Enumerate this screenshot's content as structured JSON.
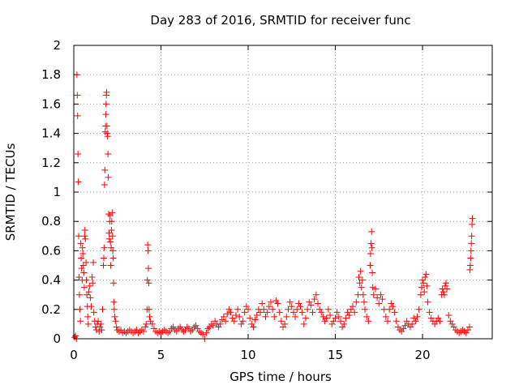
{
  "chart_data": {
    "type": "scatter",
    "title": "Day 283 of 2016, SRMTID for receiver func",
    "xlabel": "GPS time / hours",
    "ylabel": "SRMTID / TECUs",
    "xlim": [
      0,
      24
    ],
    "ylim": [
      0,
      2
    ],
    "xticks": [
      0,
      5,
      10,
      15,
      20
    ],
    "xtick_labels": [
      "0",
      "5",
      "10",
      "15",
      "20"
    ],
    "yticks": [
      0,
      0.2,
      0.4,
      0.6,
      0.8,
      1,
      1.2,
      1.4,
      1.6,
      1.8,
      2
    ],
    "ytick_labels": [
      "0",
      "0.2",
      "0.4",
      "0.6",
      "0.8",
      "1",
      "1.2",
      "1.4",
      "1.6",
      "1.8",
      "2"
    ],
    "grid": true,
    "marker": "+",
    "color": "#ff0000",
    "series": [
      {
        "name": "SRMTID",
        "points": [
          [
            0.05,
            0.01
          ],
          [
            0.1,
            0.02
          ],
          [
            0.15,
            0.0
          ],
          [
            0.18,
            1.8
          ],
          [
            0.2,
            1.66
          ],
          [
            0.22,
            1.52
          ],
          [
            0.24,
            1.26
          ],
          [
            0.26,
            1.07
          ],
          [
            0.28,
            0.7
          ],
          [
            0.3,
            0.42
          ],
          [
            0.32,
            0.3
          ],
          [
            0.35,
            0.2
          ],
          [
            0.38,
            0.12
          ],
          [
            0.4,
            0.65
          ],
          [
            0.42,
            0.55
          ],
          [
            0.45,
            0.48
          ],
          [
            0.48,
            0.4
          ],
          [
            0.5,
            0.62
          ],
          [
            0.52,
            0.58
          ],
          [
            0.55,
            0.5
          ],
          [
            0.58,
            0.45
          ],
          [
            0.6,
            0.35
          ],
          [
            0.62,
            0.7
          ],
          [
            0.64,
            0.74
          ],
          [
            0.66,
            0.68
          ],
          [
            0.7,
            0.52
          ],
          [
            0.72,
            0.4
          ],
          [
            0.75,
            0.3
          ],
          [
            0.78,
            0.22
          ],
          [
            0.8,
            0.15
          ],
          [
            0.83,
            0.1
          ],
          [
            0.86,
            0.32
          ],
          [
            0.9,
            0.36
          ],
          [
            0.95,
            0.28
          ],
          [
            1.0,
            0.22
          ],
          [
            1.05,
            0.42
          ],
          [
            1.08,
            0.38
          ],
          [
            1.12,
            0.52
          ],
          [
            1.15,
            0.18
          ],
          [
            1.2,
            0.12
          ],
          [
            1.25,
            0.08
          ],
          [
            1.3,
            0.06
          ],
          [
            1.35,
            0.1
          ],
          [
            1.4,
            0.12
          ],
          [
            1.45,
            0.05
          ],
          [
            1.5,
            0.08
          ],
          [
            1.55,
            0.1
          ],
          [
            1.6,
            0.06
          ],
          [
            1.65,
            0.2
          ],
          [
            1.7,
            0.5
          ],
          [
            1.72,
            0.55
          ],
          [
            1.74,
            0.62
          ],
          [
            1.76,
            1.05
          ],
          [
            1.78,
            1.15
          ],
          [
            1.8,
            1.41
          ],
          [
            1.82,
            1.45
          ],
          [
            1.84,
            1.53
          ],
          [
            1.85,
            1.6
          ],
          [
            1.87,
            1.66
          ],
          [
            1.88,
            1.68
          ],
          [
            1.9,
            1.45
          ],
          [
            1.92,
            1.4
          ],
          [
            1.94,
            1.38
          ],
          [
            1.96,
            1.26
          ],
          [
            1.98,
            1.1
          ],
          [
            2.0,
            0.85
          ],
          [
            2.02,
            0.72
          ],
          [
            2.04,
            0.68
          ],
          [
            2.06,
            0.8
          ],
          [
            2.08,
            0.84
          ],
          [
            2.1,
            0.66
          ],
          [
            2.12,
            0.5
          ],
          [
            2.14,
            0.62
          ],
          [
            2.16,
            0.74
          ],
          [
            2.18,
            0.8
          ],
          [
            2.2,
            0.86
          ],
          [
            2.22,
            0.7
          ],
          [
            2.24,
            0.6
          ],
          [
            2.26,
            0.55
          ],
          [
            2.28,
            0.38
          ],
          [
            2.3,
            0.25
          ],
          [
            2.32,
            0.2
          ],
          [
            2.35,
            0.15
          ],
          [
            2.4,
            0.12
          ],
          [
            2.45,
            0.08
          ],
          [
            2.5,
            0.06
          ],
          [
            2.6,
            0.05
          ],
          [
            2.7,
            0.06
          ],
          [
            2.8,
            0.04
          ],
          [
            2.9,
            0.05
          ],
          [
            3.0,
            0.04
          ],
          [
            3.1,
            0.05
          ],
          [
            3.2,
            0.06
          ],
          [
            3.3,
            0.05
          ],
          [
            3.4,
            0.04
          ],
          [
            3.5,
            0.05
          ],
          [
            3.6,
            0.06
          ],
          [
            3.7,
            0.04
          ],
          [
            3.8,
            0.05
          ],
          [
            3.9,
            0.06
          ],
          [
            4.0,
            0.05
          ],
          [
            4.1,
            0.08
          ],
          [
            4.15,
            0.1
          ],
          [
            4.2,
            0.2
          ],
          [
            4.22,
            0.4
          ],
          [
            4.24,
            0.64
          ],
          [
            4.26,
            0.6
          ],
          [
            4.28,
            0.48
          ],
          [
            4.3,
            0.38
          ],
          [
            4.32,
            0.2
          ],
          [
            4.35,
            0.15
          ],
          [
            4.4,
            0.12
          ],
          [
            4.5,
            0.1
          ],
          [
            4.6,
            0.07
          ],
          [
            4.7,
            0.05
          ],
          [
            4.8,
            0.04
          ],
          [
            4.9,
            0.05
          ],
          [
            5.0,
            0.04
          ],
          [
            5.1,
            0.05
          ],
          [
            5.2,
            0.06
          ],
          [
            5.3,
            0.05
          ],
          [
            5.4,
            0.04
          ],
          [
            5.5,
            0.05
          ],
          [
            5.6,
            0.07
          ],
          [
            5.7,
            0.08
          ],
          [
            5.8,
            0.06
          ],
          [
            5.9,
            0.05
          ],
          [
            6.0,
            0.07
          ],
          [
            6.1,
            0.08
          ],
          [
            6.2,
            0.06
          ],
          [
            6.3,
            0.05
          ],
          [
            6.4,
            0.06
          ],
          [
            6.5,
            0.08
          ],
          [
            6.6,
            0.07
          ],
          [
            6.7,
            0.05
          ],
          [
            6.8,
            0.06
          ],
          [
            6.9,
            0.08
          ],
          [
            7.0,
            0.09
          ],
          [
            7.1,
            0.07
          ],
          [
            7.2,
            0.05
          ],
          [
            7.3,
            0.04
          ],
          [
            7.4,
            0.03
          ],
          [
            7.5,
            0.0
          ],
          [
            7.6,
            0.04
          ],
          [
            7.7,
            0.07
          ],
          [
            7.8,
            0.08
          ],
          [
            7.9,
            0.1
          ],
          [
            8.0,
            0.09
          ],
          [
            8.1,
            0.12
          ],
          [
            8.2,
            0.1
          ],
          [
            8.3,
            0.08
          ],
          [
            8.4,
            0.1
          ],
          [
            8.5,
            0.13
          ],
          [
            8.6,
            0.15
          ],
          [
            8.7,
            0.12
          ],
          [
            8.8,
            0.17
          ],
          [
            8.9,
            0.2
          ],
          [
            9.0,
            0.18
          ],
          [
            9.1,
            0.14
          ],
          [
            9.2,
            0.12
          ],
          [
            9.3,
            0.16
          ],
          [
            9.4,
            0.2
          ],
          [
            9.5,
            0.15
          ],
          [
            9.6,
            0.1
          ],
          [
            9.7,
            0.12
          ],
          [
            9.8,
            0.18
          ],
          [
            9.9,
            0.22
          ],
          [
            10.0,
            0.2
          ],
          [
            10.1,
            0.14
          ],
          [
            10.2,
            0.1
          ],
          [
            10.3,
            0.08
          ],
          [
            10.4,
            0.13
          ],
          [
            10.5,
            0.16
          ],
          [
            10.6,
            0.2
          ],
          [
            10.7,
            0.18
          ],
          [
            10.8,
            0.24
          ],
          [
            10.9,
            0.2
          ],
          [
            11.0,
            0.15
          ],
          [
            11.1,
            0.18
          ],
          [
            11.2,
            0.22
          ],
          [
            11.3,
            0.25
          ],
          [
            11.4,
            0.2
          ],
          [
            11.5,
            0.15
          ],
          [
            11.6,
            0.26
          ],
          [
            11.7,
            0.24
          ],
          [
            11.8,
            0.18
          ],
          [
            11.9,
            0.12
          ],
          [
            12.0,
            0.08
          ],
          [
            12.1,
            0.1
          ],
          [
            12.2,
            0.15
          ],
          [
            12.3,
            0.2
          ],
          [
            12.4,
            0.25
          ],
          [
            12.5,
            0.22
          ],
          [
            12.6,
            0.18
          ],
          [
            12.7,
            0.15
          ],
          [
            12.8,
            0.2
          ],
          [
            12.9,
            0.24
          ],
          [
            13.0,
            0.22
          ],
          [
            13.1,
            0.18
          ],
          [
            13.2,
            0.1
          ],
          [
            13.3,
            0.14
          ],
          [
            13.4,
            0.2
          ],
          [
            13.5,
            0.25
          ],
          [
            13.6,
            0.23
          ],
          [
            13.7,
            0.18
          ],
          [
            13.8,
            0.27
          ],
          [
            13.9,
            0.3
          ],
          [
            14.0,
            0.24
          ],
          [
            14.1,
            0.2
          ],
          [
            14.2,
            0.18
          ],
          [
            14.3,
            0.15
          ],
          [
            14.4,
            0.12
          ],
          [
            14.5,
            0.14
          ],
          [
            14.6,
            0.2
          ],
          [
            14.7,
            0.16
          ],
          [
            14.8,
            0.1
          ],
          [
            14.9,
            0.12
          ],
          [
            15.0,
            0.14
          ],
          [
            15.1,
            0.18
          ],
          [
            15.2,
            0.15
          ],
          [
            15.3,
            0.12
          ],
          [
            15.4,
            0.08
          ],
          [
            15.5,
            0.1
          ],
          [
            15.6,
            0.14
          ],
          [
            15.7,
            0.18
          ],
          [
            15.8,
            0.16
          ],
          [
            15.9,
            0.2
          ],
          [
            16.0,
            0.22
          ],
          [
            16.1,
            0.18
          ],
          [
            16.2,
            0.25
          ],
          [
            16.3,
            0.3
          ],
          [
            16.35,
            0.42
          ],
          [
            16.4,
            0.38
          ],
          [
            16.45,
            0.46
          ],
          [
            16.5,
            0.35
          ],
          [
            16.55,
            0.4
          ],
          [
            16.6,
            0.3
          ],
          [
            16.65,
            0.25
          ],
          [
            16.7,
            0.2
          ],
          [
            16.8,
            0.15
          ],
          [
            16.9,
            0.12
          ],
          [
            17.0,
            0.5
          ],
          [
            17.02,
            0.58
          ],
          [
            17.05,
            0.65
          ],
          [
            17.08,
            0.73
          ],
          [
            17.1,
            0.62
          ],
          [
            17.12,
            0.45
          ],
          [
            17.15,
            0.35
          ],
          [
            17.2,
            0.3
          ],
          [
            17.3,
            0.34
          ],
          [
            17.4,
            0.28
          ],
          [
            17.5,
            0.24
          ],
          [
            17.6,
            0.3
          ],
          [
            17.7,
            0.27
          ],
          [
            17.8,
            0.2
          ],
          [
            17.9,
            0.15
          ],
          [
            18.0,
            0.12
          ],
          [
            18.1,
            0.2
          ],
          [
            18.2,
            0.24
          ],
          [
            18.3,
            0.22
          ],
          [
            18.4,
            0.18
          ],
          [
            18.5,
            0.12
          ],
          [
            18.6,
            0.08
          ],
          [
            18.7,
            0.06
          ],
          [
            18.8,
            0.05
          ],
          [
            18.9,
            0.07
          ],
          [
            19.0,
            0.09
          ],
          [
            19.1,
            0.12
          ],
          [
            19.2,
            0.1
          ],
          [
            19.3,
            0.08
          ],
          [
            19.4,
            0.1
          ],
          [
            19.5,
            0.14
          ],
          [
            19.6,
            0.12
          ],
          [
            19.7,
            0.15
          ],
          [
            19.8,
            0.2
          ],
          [
            19.9,
            0.3
          ],
          [
            19.95,
            0.35
          ],
          [
            20.0,
            0.4
          ],
          [
            20.05,
            0.38
          ],
          [
            20.1,
            0.32
          ],
          [
            20.15,
            0.42
          ],
          [
            20.2,
            0.44
          ],
          [
            20.25,
            0.36
          ],
          [
            20.3,
            0.25
          ],
          [
            20.4,
            0.18
          ],
          [
            20.5,
            0.14
          ],
          [
            20.6,
            0.12
          ],
          [
            20.7,
            0.1
          ],
          [
            20.8,
            0.12
          ],
          [
            20.9,
            0.14
          ],
          [
            21.0,
            0.12
          ],
          [
            21.1,
            0.3
          ],
          [
            21.15,
            0.34
          ],
          [
            21.2,
            0.32
          ],
          [
            21.25,
            0.3
          ],
          [
            21.3,
            0.36
          ],
          [
            21.35,
            0.38
          ],
          [
            21.4,
            0.34
          ],
          [
            21.5,
            0.16
          ],
          [
            21.6,
            0.12
          ],
          [
            21.7,
            0.1
          ],
          [
            21.8,
            0.08
          ],
          [
            21.9,
            0.06
          ],
          [
            22.0,
            0.05
          ],
          [
            22.1,
            0.04
          ],
          [
            22.2,
            0.05
          ],
          [
            22.3,
            0.06
          ],
          [
            22.4,
            0.05
          ],
          [
            22.5,
            0.04
          ],
          [
            22.6,
            0.06
          ],
          [
            22.7,
            0.08
          ],
          [
            22.72,
            0.47
          ],
          [
            22.74,
            0.5
          ],
          [
            22.76,
            0.55
          ],
          [
            22.78,
            0.6
          ],
          [
            22.8,
            0.65
          ],
          [
            22.82,
            0.7
          ],
          [
            22.84,
            0.78
          ],
          [
            22.86,
            0.82
          ]
        ]
      }
    ]
  }
}
